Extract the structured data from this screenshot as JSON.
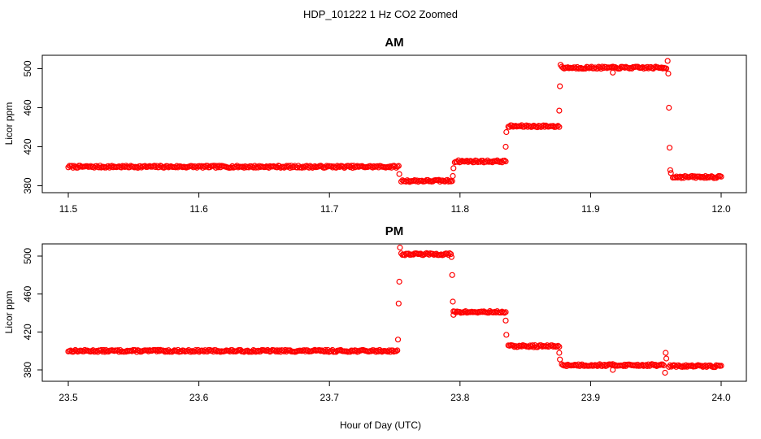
{
  "super_title": "HDP_101222  1 Hz CO2 Zoomed",
  "shared_xlabel": "Hour of Day (UTC)",
  "point_color": "#ff0000",
  "chart_data": [
    {
      "type": "scatter",
      "title": "AM",
      "ylabel": "Licor ppm",
      "xlabel": "",
      "xlim": [
        11.5,
        12.0
      ],
      "ylim": [
        378,
        512
      ],
      "x_ticks": [
        "11.5",
        "11.6",
        "11.7",
        "11.8",
        "11.9",
        "12.0"
      ],
      "y_ticks": [
        "380",
        "420",
        "460",
        "500"
      ],
      "marker": "open-circle",
      "segments": [
        {
          "x_start": 11.5,
          "x_end": 11.753,
          "y": 399.5
        },
        {
          "x_start": 11.755,
          "x_end": 11.794,
          "y": 385
        },
        {
          "x_start": 11.796,
          "x_end": 11.835,
          "y": 405
        },
        {
          "x_start": 11.837,
          "x_end": 11.876,
          "y": 441
        },
        {
          "x_start": 11.878,
          "x_end": 11.958,
          "y": 501
        },
        {
          "x_start": 11.963,
          "x_end": 12.0,
          "y": 389
        }
      ],
      "transition_points": [
        {
          "x": 11.7535,
          "y": 392
        },
        {
          "x": 11.7945,
          "y": 390
        },
        {
          "x": 11.795,
          "y": 398
        },
        {
          "x": 11.835,
          "y": 420
        },
        {
          "x": 11.8355,
          "y": 435
        },
        {
          "x": 11.876,
          "y": 457
        },
        {
          "x": 11.8765,
          "y": 482
        },
        {
          "x": 11.877,
          "y": 504
        },
        {
          "x": 11.917,
          "y": 496
        },
        {
          "x": 11.959,
          "y": 508
        },
        {
          "x": 11.9595,
          "y": 495
        },
        {
          "x": 11.96,
          "y": 460
        },
        {
          "x": 11.9605,
          "y": 419
        },
        {
          "x": 11.961,
          "y": 396
        },
        {
          "x": 11.9615,
          "y": 393
        }
      ]
    },
    {
      "type": "scatter",
      "title": "PM",
      "ylabel": "Licor ppm",
      "xlabel": "",
      "xlim": [
        23.5,
        24.0
      ],
      "ylim": [
        372,
        512
      ],
      "x_ticks": [
        "23.5",
        "23.6",
        "23.7",
        "23.8",
        "23.9",
        "24.0"
      ],
      "y_ticks": [
        "380",
        "420",
        "460",
        "500"
      ],
      "marker": "open-circle",
      "segments": [
        {
          "x_start": 23.5,
          "x_end": 23.752,
          "y": 400
        },
        {
          "x_start": 23.755,
          "x_end": 23.793,
          "y": 502
        },
        {
          "x_start": 23.795,
          "x_end": 23.835,
          "y": 441
        },
        {
          "x_start": 23.837,
          "x_end": 23.876,
          "y": 405
        },
        {
          "x_start": 23.878,
          "x_end": 23.956,
          "y": 385
        },
        {
          "x_start": 23.96,
          "x_end": 24.0,
          "y": 384
        }
      ],
      "transition_points": [
        {
          "x": 23.7525,
          "y": 412
        },
        {
          "x": 23.753,
          "y": 450
        },
        {
          "x": 23.7535,
          "y": 473
        },
        {
          "x": 23.754,
          "y": 509
        },
        {
          "x": 23.7935,
          "y": 499
        },
        {
          "x": 23.794,
          "y": 480
        },
        {
          "x": 23.7945,
          "y": 452
        },
        {
          "x": 23.795,
          "y": 438
        },
        {
          "x": 23.835,
          "y": 432
        },
        {
          "x": 23.8355,
          "y": 417
        },
        {
          "x": 23.876,
          "y": 398
        },
        {
          "x": 23.8765,
          "y": 391
        },
        {
          "x": 23.917,
          "y": 380
        },
        {
          "x": 23.957,
          "y": 377
        },
        {
          "x": 23.9575,
          "y": 398
        },
        {
          "x": 23.958,
          "y": 392
        }
      ]
    }
  ]
}
